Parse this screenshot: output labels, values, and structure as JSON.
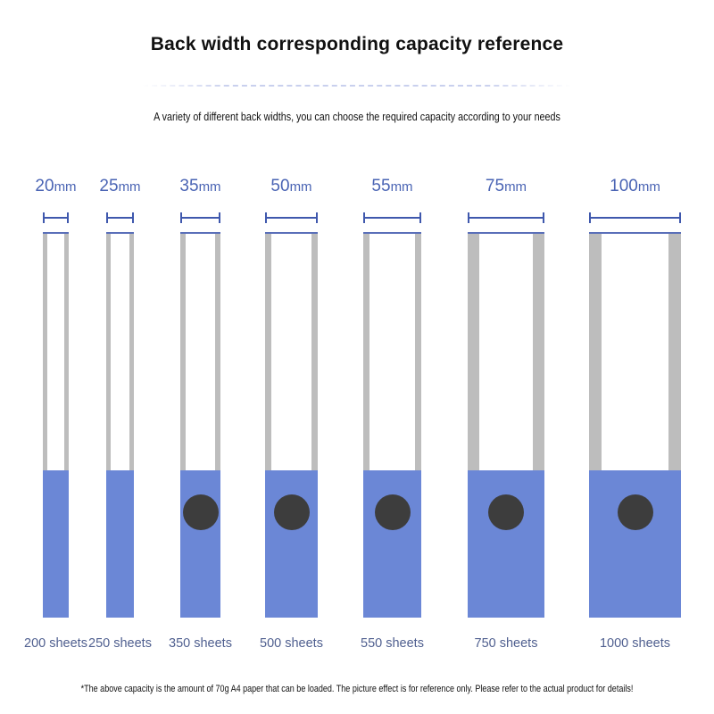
{
  "header": {
    "title": "Back width corresponding capacity reference",
    "subtitle": "A variety of different back widths, you can choose the required capacity according to your needs"
  },
  "unit": "mm",
  "colors": {
    "accent": "#4a64b4",
    "fill": "#6b87d6",
    "wall": "#bdbdbd",
    "hole": "#3d3d3d"
  },
  "binders": [
    {
      "width_mm": "20",
      "sheets": "200 sheets",
      "ring_hole": false
    },
    {
      "width_mm": "25",
      "sheets": "250 sheets",
      "ring_hole": false
    },
    {
      "width_mm": "35",
      "sheets": "350 sheets",
      "ring_hole": true
    },
    {
      "width_mm": "50",
      "sheets": "500 sheets",
      "ring_hole": true
    },
    {
      "width_mm": "55",
      "sheets": "550 sheets",
      "ring_hole": true
    },
    {
      "width_mm": "75",
      "sheets": "750 sheets",
      "ring_hole": true
    },
    {
      "width_mm": "100",
      "sheets": "1000 sheets",
      "ring_hole": true
    }
  ],
  "footer": {
    "note": "*The above capacity is the amount of 70g A4 paper that can be loaded. The picture effect is for reference only. Please refer to the actual product for details!"
  }
}
